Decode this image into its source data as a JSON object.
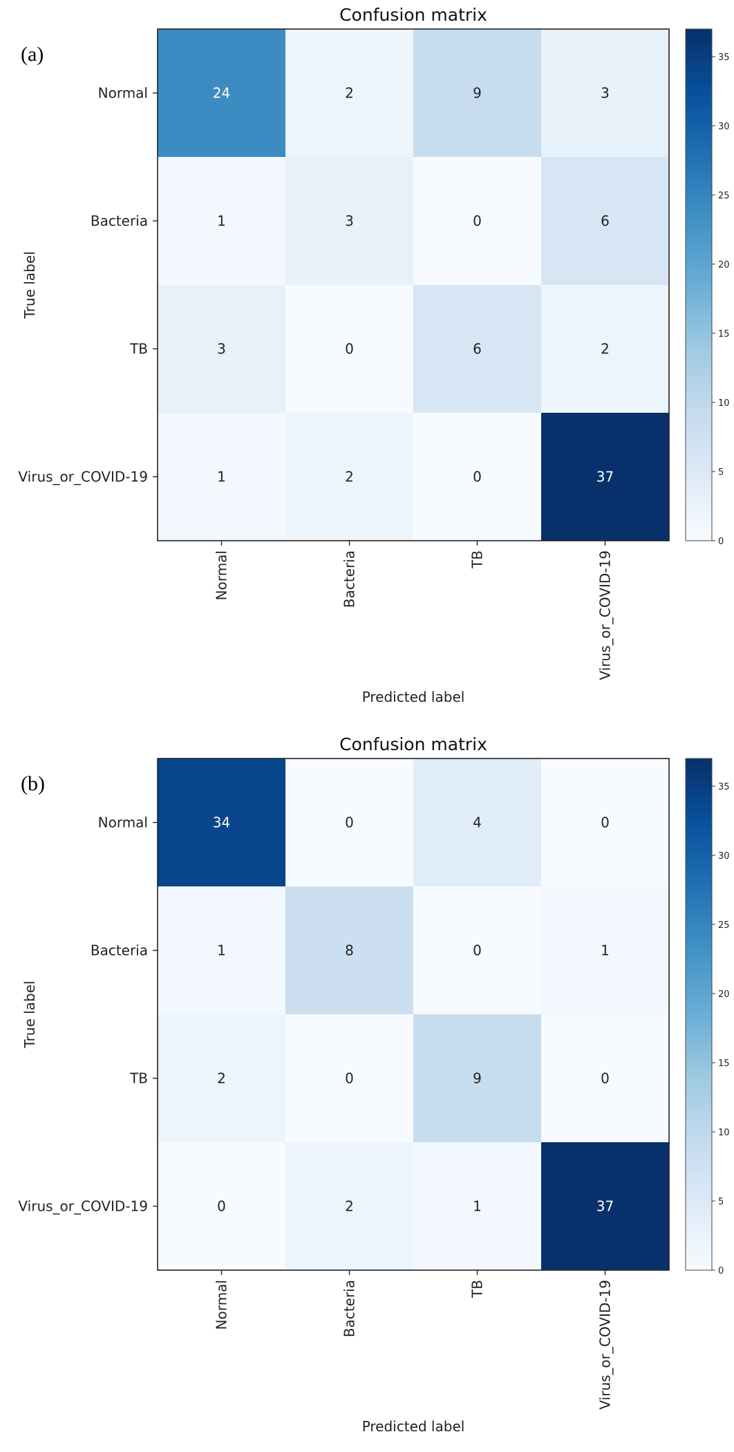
{
  "chart_data": [
    {
      "type": "heatmap",
      "panel_label": "(a)",
      "title": "Confusion matrix",
      "xlabel": "Predicted label",
      "ylabel": "True label",
      "row_labels": [
        "Normal",
        "Bacteria",
        "TB",
        "Virus_or_COVID-19"
      ],
      "col_labels": [
        "Normal",
        "Bacteria",
        "TB",
        "Virus_or_COVID-19"
      ],
      "values": [
        [
          24,
          2,
          9,
          3
        ],
        [
          1,
          3,
          0,
          6
        ],
        [
          3,
          0,
          6,
          2
        ],
        [
          1,
          2,
          0,
          37
        ]
      ],
      "colormap": "Blues",
      "colorbar": {
        "min": 0,
        "max": 37,
        "ticks": [
          0,
          5,
          10,
          15,
          20,
          25,
          30,
          35
        ]
      }
    },
    {
      "type": "heatmap",
      "panel_label": "(b)",
      "title": "Confusion matrix",
      "xlabel": "Predicted label",
      "ylabel": "True label",
      "row_labels": [
        "Normal",
        "Bacteria",
        "TB",
        "Virus_or_COVID-19"
      ],
      "col_labels": [
        "Normal",
        "Bacteria",
        "TB",
        "Virus_or_COVID-19"
      ],
      "values": [
        [
          34,
          0,
          4,
          0
        ],
        [
          1,
          8,
          0,
          1
        ],
        [
          2,
          0,
          9,
          0
        ],
        [
          0,
          2,
          1,
          37
        ]
      ],
      "colormap": "Blues",
      "colorbar": {
        "min": 0,
        "max": 37,
        "ticks": [
          0,
          5,
          10,
          15,
          20,
          25,
          30,
          35
        ]
      }
    }
  ]
}
